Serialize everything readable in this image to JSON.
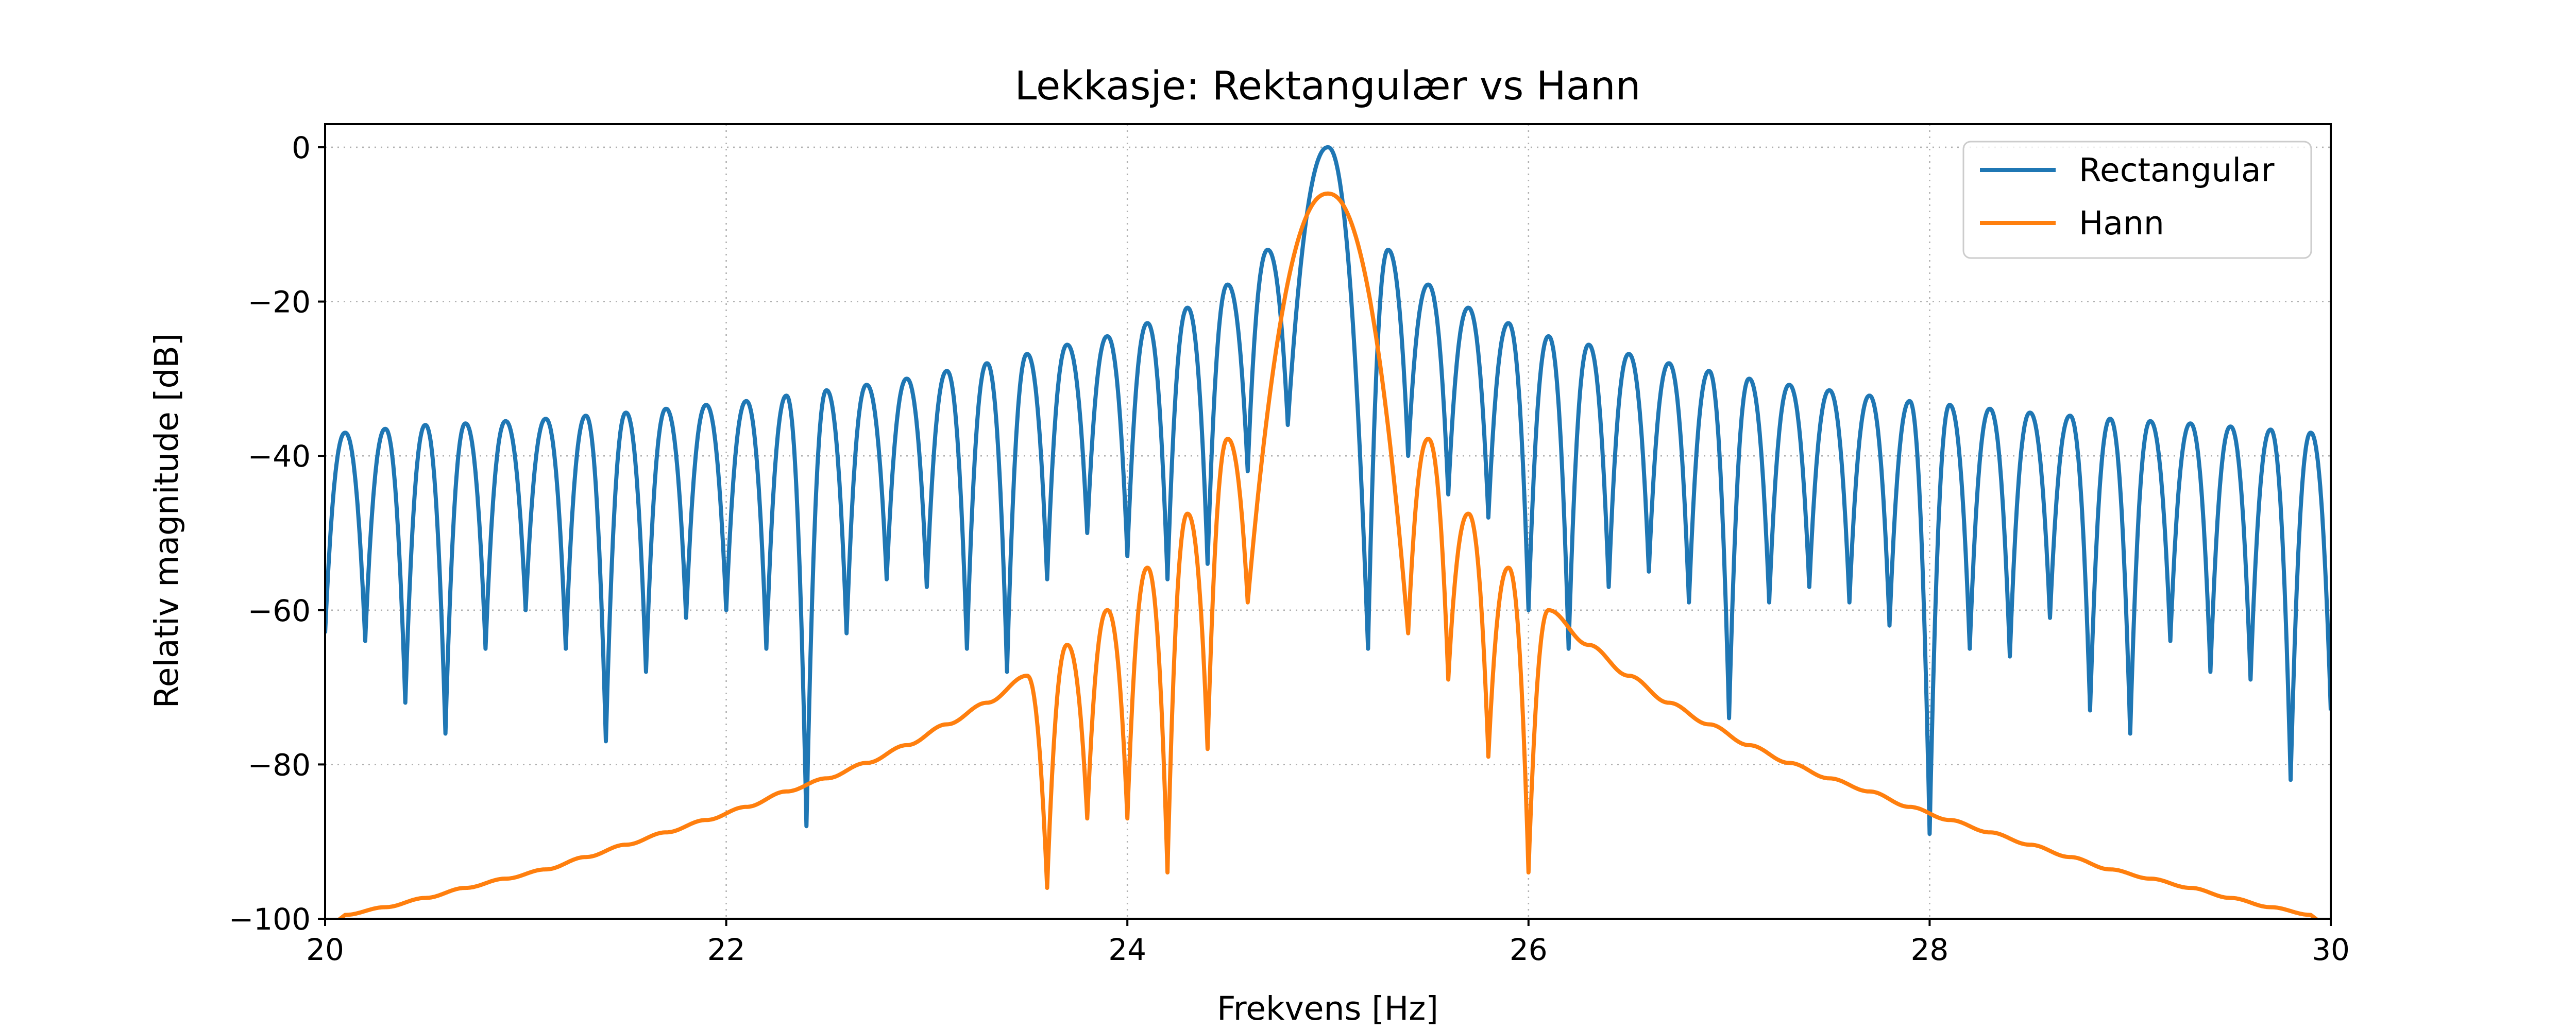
{
  "chart_data": {
    "type": "line",
    "title": "Lekkasje: Rektangulær vs Hann",
    "xlabel": "Frekvens [Hz]",
    "ylabel": "Relativ magnitude [dB]",
    "xlim": [
      20,
      30
    ],
    "ylim": [
      -100,
      3
    ],
    "x_ticks": [
      20,
      22,
      24,
      26,
      28,
      30
    ],
    "y_ticks": [
      0,
      -20,
      -40,
      -60,
      -80,
      -100
    ],
    "x_tick_labels": [
      "20",
      "22",
      "24",
      "26",
      "28",
      "30"
    ],
    "y_tick_labels": [
      "0",
      "−20",
      "−40",
      "−60",
      "−80",
      "−100"
    ],
    "grid": true,
    "legend_position": "top-right",
    "series": [
      {
        "name": "Rectangular",
        "color": "#1f77b4",
        "peak_frequency": 25.0,
        "peak_db": 0,
        "sidelobes": [
          {
            "x": 20.1,
            "y": -37
          },
          {
            "x": 20.3,
            "y": -36.5
          },
          {
            "x": 20.5,
            "y": -36
          },
          {
            "x": 20.7,
            "y": -35.8
          },
          {
            "x": 20.9,
            "y": -35.5
          },
          {
            "x": 21.1,
            "y": -35.2
          },
          {
            "x": 21.3,
            "y": -34.8
          },
          {
            "x": 21.5,
            "y": -34.4
          },
          {
            "x": 21.7,
            "y": -33.9
          },
          {
            "x": 21.9,
            "y": -33.4
          },
          {
            "x": 22.1,
            "y": -32.9
          },
          {
            "x": 22.3,
            "y": -32.2
          },
          {
            "x": 22.5,
            "y": -31.5
          },
          {
            "x": 22.7,
            "y": -30.8
          },
          {
            "x": 22.9,
            "y": -30.0
          },
          {
            "x": 23.1,
            "y": -29.0
          },
          {
            "x": 23.3,
            "y": -28.0
          },
          {
            "x": 23.5,
            "y": -26.8
          },
          {
            "x": 23.7,
            "y": -25.6
          },
          {
            "x": 23.9,
            "y": -24.5
          },
          {
            "x": 24.1,
            "y": -22.8
          },
          {
            "x": 24.3,
            "y": -20.8
          },
          {
            "x": 24.5,
            "y": -17.8
          },
          {
            "x": 24.7,
            "y": -13.3
          },
          {
            "x": 25.3,
            "y": -13.3
          },
          {
            "x": 25.5,
            "y": -17.8
          },
          {
            "x": 25.7,
            "y": -20.8
          },
          {
            "x": 25.9,
            "y": -22.8
          },
          {
            "x": 26.1,
            "y": -24.5
          },
          {
            "x": 26.3,
            "y": -25.6
          },
          {
            "x": 26.5,
            "y": -26.8
          },
          {
            "x": 26.7,
            "y": -28.0
          },
          {
            "x": 26.9,
            "y": -29.0
          },
          {
            "x": 27.1,
            "y": -30.0
          },
          {
            "x": 27.3,
            "y": -30.8
          },
          {
            "x": 27.5,
            "y": -31.5
          },
          {
            "x": 27.7,
            "y": -32.2
          },
          {
            "x": 27.9,
            "y": -32.9
          },
          {
            "x": 28.1,
            "y": -33.4
          },
          {
            "x": 28.3,
            "y": -33.9
          },
          {
            "x": 28.5,
            "y": -34.4
          },
          {
            "x": 28.7,
            "y": -34.8
          },
          {
            "x": 28.9,
            "y": -35.2
          },
          {
            "x": 29.1,
            "y": -35.5
          },
          {
            "x": 29.3,
            "y": -35.8
          },
          {
            "x": 29.5,
            "y": -36.2
          },
          {
            "x": 29.7,
            "y": -36.6
          },
          {
            "x": 29.9,
            "y": -37.0
          }
        ],
        "nulls": [
          {
            "x": 20.0,
            "y": -63
          },
          {
            "x": 20.2,
            "y": -64
          },
          {
            "x": 20.4,
            "y": -72
          },
          {
            "x": 20.6,
            "y": -76
          },
          {
            "x": 20.8,
            "y": -65
          },
          {
            "x": 21.0,
            "y": -60
          },
          {
            "x": 21.2,
            "y": -65
          },
          {
            "x": 21.4,
            "y": -77
          },
          {
            "x": 21.6,
            "y": -68
          },
          {
            "x": 21.8,
            "y": -61
          },
          {
            "x": 22.0,
            "y": -60
          },
          {
            "x": 22.2,
            "y": -65
          },
          {
            "x": 22.4,
            "y": -88
          },
          {
            "x": 22.6,
            "y": -63
          },
          {
            "x": 22.8,
            "y": -56
          },
          {
            "x": 23.0,
            "y": -57
          },
          {
            "x": 23.2,
            "y": -65
          },
          {
            "x": 23.4,
            "y": -68
          },
          {
            "x": 23.6,
            "y": -56
          },
          {
            "x": 23.8,
            "y": -50
          },
          {
            "x": 24.0,
            "y": -53
          },
          {
            "x": 24.2,
            "y": -56
          },
          {
            "x": 24.4,
            "y": -54
          },
          {
            "x": 24.6,
            "y": -42
          },
          {
            "x": 24.8,
            "y": -36
          },
          {
            "x": 25.2,
            "y": -65
          },
          {
            "x": 25.4,
            "y": -40
          },
          {
            "x": 25.6,
            "y": -45
          },
          {
            "x": 25.8,
            "y": -48
          },
          {
            "x": 26.0,
            "y": -60
          },
          {
            "x": 26.2,
            "y": -65
          },
          {
            "x": 26.4,
            "y": -57
          },
          {
            "x": 26.6,
            "y": -55
          },
          {
            "x": 26.8,
            "y": -59
          },
          {
            "x": 27.0,
            "y": -74
          },
          {
            "x": 27.2,
            "y": -59
          },
          {
            "x": 27.4,
            "y": -57
          },
          {
            "x": 27.6,
            "y": -59
          },
          {
            "x": 27.8,
            "y": -62
          },
          {
            "x": 28.0,
            "y": -89
          },
          {
            "x": 28.2,
            "y": -65
          },
          {
            "x": 28.4,
            "y": -66
          },
          {
            "x": 28.6,
            "y": -61
          },
          {
            "x": 28.8,
            "y": -73
          },
          {
            "x": 29.0,
            "y": -76
          },
          {
            "x": 29.2,
            "y": -64
          },
          {
            "x": 29.4,
            "y": -68
          },
          {
            "x": 29.6,
            "y": -69
          },
          {
            "x": 29.8,
            "y": -82
          },
          {
            "x": 30.0,
            "y": -73
          }
        ]
      },
      {
        "name": "Hann",
        "color": "#ff7f0e",
        "peak_frequency": 25.0,
        "peak_db": -6,
        "sidelobes": [
          {
            "x": 20.1,
            "y": -99.5
          },
          {
            "x": 20.3,
            "y": -98.5
          },
          {
            "x": 20.5,
            "y": -97.3
          },
          {
            "x": 20.7,
            "y": -96.0
          },
          {
            "x": 20.9,
            "y": -94.8
          },
          {
            "x": 21.1,
            "y": -93.6
          },
          {
            "x": 21.3,
            "y": -92.0
          },
          {
            "x": 21.5,
            "y": -90.4
          },
          {
            "x": 21.7,
            "y": -88.8
          },
          {
            "x": 21.9,
            "y": -87.2
          },
          {
            "x": 22.1,
            "y": -85.5
          },
          {
            "x": 22.3,
            "y": -83.5
          },
          {
            "x": 22.5,
            "y": -81.8
          },
          {
            "x": 22.7,
            "y": -79.8
          },
          {
            "x": 22.9,
            "y": -77.5
          },
          {
            "x": 23.1,
            "y": -74.8
          },
          {
            "x": 23.3,
            "y": -72.0
          },
          {
            "x": 23.5,
            "y": -68.5
          },
          {
            "x": 23.7,
            "y": -64.5
          },
          {
            "x": 23.9,
            "y": -60.0
          },
          {
            "x": 24.1,
            "y": -54.5
          },
          {
            "x": 24.3,
            "y": -47.5
          },
          {
            "x": 24.5,
            "y": -37.8
          },
          {
            "x": 25.5,
            "y": -37.8
          },
          {
            "x": 25.7,
            "y": -47.5
          },
          {
            "x": 25.9,
            "y": -54.5
          },
          {
            "x": 26.1,
            "y": -60.0
          },
          {
            "x": 26.3,
            "y": -64.5
          },
          {
            "x": 26.5,
            "y": -68.5
          },
          {
            "x": 26.7,
            "y": -72.0
          },
          {
            "x": 26.9,
            "y": -74.8
          },
          {
            "x": 27.1,
            "y": -77.5
          },
          {
            "x": 27.3,
            "y": -79.8
          },
          {
            "x": 27.5,
            "y": -81.8
          },
          {
            "x": 27.7,
            "y": -83.5
          },
          {
            "x": 27.9,
            "y": -85.5
          },
          {
            "x": 28.1,
            "y": -87.2
          },
          {
            "x": 28.3,
            "y": -88.8
          },
          {
            "x": 28.5,
            "y": -90.4
          },
          {
            "x": 28.7,
            "y": -92.0
          },
          {
            "x": 28.9,
            "y": -93.6
          },
          {
            "x": 29.1,
            "y": -94.8
          },
          {
            "x": 29.3,
            "y": -96.0
          },
          {
            "x": 29.5,
            "y": -97.3
          },
          {
            "x": 29.7,
            "y": -98.5
          },
          {
            "x": 29.9,
            "y": -99.5
          }
        ],
        "nulls": [
          {
            "x": 23.6,
            "y": -96
          },
          {
            "x": 23.8,
            "y": -87
          },
          {
            "x": 24.0,
            "y": -87
          },
          {
            "x": 24.2,
            "y": -94
          },
          {
            "x": 24.4,
            "y": -78
          },
          {
            "x": 24.6,
            "y": -59
          },
          {
            "x": 25.4,
            "y": -63
          },
          {
            "x": 25.6,
            "y": -69
          },
          {
            "x": 25.8,
            "y": -79
          },
          {
            "x": 26.0,
            "y": -94
          }
        ]
      }
    ]
  }
}
